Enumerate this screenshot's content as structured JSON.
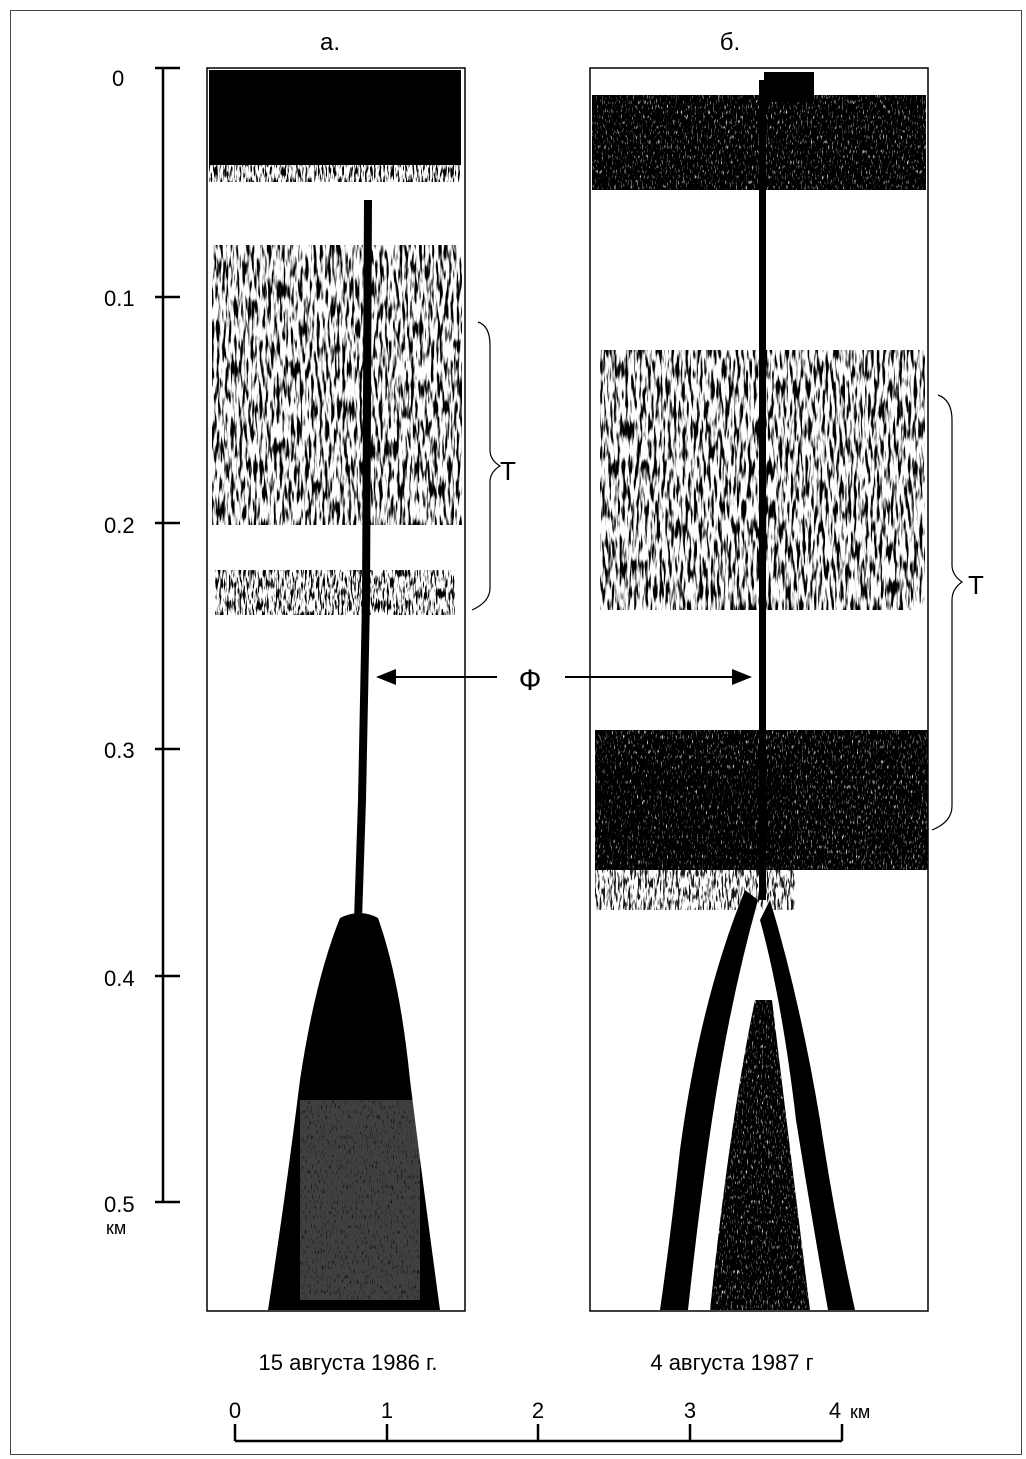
{
  "panel_a": {
    "label": "а.",
    "date": "15 августа 1986 г."
  },
  "panel_b": {
    "label": "б.",
    "date": "4 августа 1987 г"
  },
  "height_axis": {
    "ticks": [
      "0",
      "0.1",
      "0.2",
      "0.3",
      "0.4",
      "0.5"
    ],
    "unit": "км"
  },
  "distance_axis": {
    "ticks": [
      "0",
      "1",
      "2",
      "3",
      "4"
    ],
    "unit": "км"
  },
  "annotations": {
    "layer_a": "Т",
    "layer_b": "Т",
    "plume": "Ф"
  },
  "colors": {
    "echo": "#000000",
    "background": "#ffffff",
    "frame": "#444444"
  }
}
